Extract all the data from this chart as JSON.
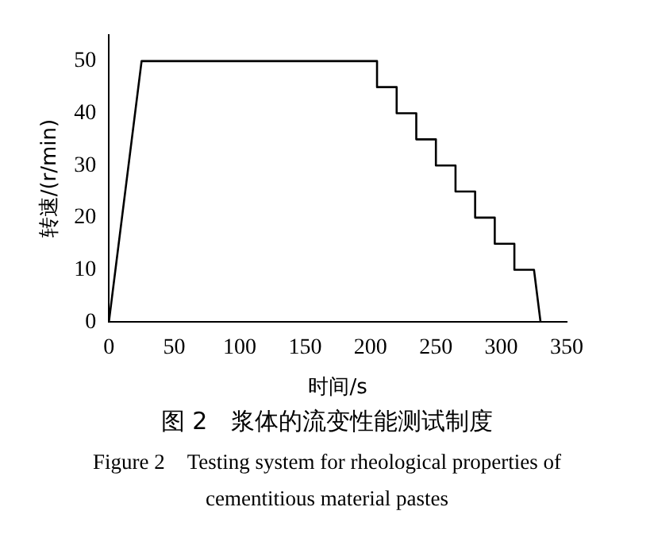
{
  "chart_data": {
    "type": "line",
    "title": "图 2　浆体的流变性能测试制度",
    "subtitle": "Figure 2　Testing system for rheological properties of cementitious material pastes",
    "xlabel": "时间/s",
    "ylabel": "转速/(r/min)",
    "x": [
      0,
      25,
      205,
      205,
      220,
      220,
      235,
      235,
      250,
      250,
      265,
      265,
      280,
      280,
      295,
      295,
      310,
      310,
      325,
      330
    ],
    "values": [
      0,
      50,
      50,
      45,
      45,
      40,
      40,
      35,
      35,
      30,
      30,
      25,
      25,
      20,
      20,
      15,
      15,
      10,
      10,
      0
    ],
    "color": "#000000",
    "xlim": [
      0,
      350
    ],
    "xticks": [
      0,
      50,
      100,
      150,
      200,
      250,
      300,
      350
    ],
    "ylim": [
      0,
      55
    ],
    "yticks": [
      0,
      10,
      20,
      30,
      40,
      50
    ],
    "grid": false,
    "legend": false,
    "marker": "none",
    "line_style": "solid"
  }
}
